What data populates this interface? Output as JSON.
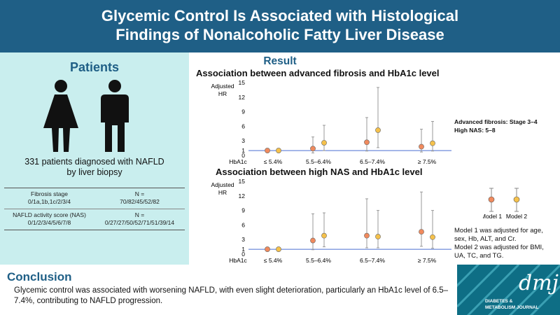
{
  "header": {
    "title_line1": "Glycemic Control Is Associated with Histological",
    "title_line2": "Findings of Nonalcoholic Fatty Liver Disease"
  },
  "patients": {
    "title": "Patients",
    "desc_line1": "331 patients diagnosed with NAFLD",
    "desc_line2": "by liver biopsy",
    "rows": [
      {
        "label_line1": "Fibrosis stage",
        "label_line2": "0/1a,1b,1c/2/3/4",
        "n_line1": "N =",
        "n_line2": "70/82/45/52/82"
      },
      {
        "label_line1": "NAFLD activity score (NAS)",
        "label_line2": "0/1/2/3/4/5/6/7/8",
        "n_line1": "N =",
        "n_line2": "0/27/27/50/52/71/51/39/14"
      }
    ]
  },
  "result": {
    "title": "Result",
    "chart1_title": "Association between advanced fibrosis and HbA1c level",
    "chart2_title": "Association between high NAS and HbA1c level",
    "notes": {
      "def_line1": "Advanced fibrosis: Stage 3–4",
      "def_line2": "High NAS: 5–8",
      "model_line1": "Model 1 was adjusted for age,",
      "model_line2": "sex, Hb, ALT, and Cr.",
      "model_line3": "Model 2 was adjusted for BMI,",
      "model_line4": "UA, TC, and TG."
    },
    "legend": {
      "model1": "Model 1",
      "model2": "Model 2",
      "model1_color": "#f08a5d",
      "model2_color": "#f5c14b"
    }
  },
  "chart_data": [
    {
      "type": "scatter",
      "title": "Association between advanced fibrosis and HbA1c level",
      "ylabel_line1": "Adjusted",
      "ylabel_line2": "HR",
      "xlabel": "HbA1c",
      "categories": [
        "≤ 5.4%",
        "5.5–6.4%",
        "6.5–7.4%",
        "≥ 7.5%"
      ],
      "yticks": [
        0,
        1,
        3,
        6,
        9,
        12,
        15
      ],
      "ylim": [
        0,
        15
      ],
      "reference_line": 1,
      "series": [
        {
          "name": "Model 1",
          "values": [
            1.0,
            1.4,
            2.7,
            1.8
          ],
          "lower": [
            1.0,
            0.5,
            0.9,
            0.7
          ],
          "upper": [
            1.0,
            3.8,
            7.8,
            5.4
          ]
        },
        {
          "name": "Model 2",
          "values": [
            1.0,
            2.6,
            5.2,
            2.5
          ],
          "lower": [
            1.0,
            1.0,
            1.6,
            0.9
          ],
          "upper": [
            1.0,
            6.2,
            14.0,
            7.0
          ]
        }
      ]
    },
    {
      "type": "scatter",
      "title": "Association between high NAS and HbA1c level",
      "ylabel_line1": "Adjusted",
      "ylabel_line2": "HR",
      "xlabel": "HbA1c",
      "categories": [
        "≤ 5.4%",
        "5.5–6.4%",
        "6.5–7.4%",
        "≥ 7.5%"
      ],
      "yticks": [
        0,
        1,
        3,
        6,
        9,
        12,
        15
      ],
      "ylim": [
        0,
        15
      ],
      "reference_line": 1,
      "series": [
        {
          "name": "Model 1",
          "values": [
            1.0,
            2.8,
            3.8,
            4.6
          ],
          "lower": [
            1.0,
            0.9,
            1.3,
            1.6
          ],
          "upper": [
            1.0,
            8.3,
            11.4,
            12.8
          ]
        },
        {
          "name": "Model 2",
          "values": [
            1.0,
            3.8,
            3.6,
            3.5
          ],
          "lower": [
            1.0,
            1.5,
            1.3,
            1.2
          ],
          "upper": [
            1.0,
            8.5,
            9.0,
            9.0
          ]
        }
      ]
    }
  ],
  "conclusion": {
    "title": "Conclusion",
    "text": "Glycemic control was associated with worsening NAFLD, with even slight deterioration, particularly an HbA1c level of 6.5–7.4%, contributing to NAFLD progression."
  },
  "logo": {
    "mark": "dmj",
    "line1": "DIABETES &",
    "line2": "METABOLISM JOURNAL"
  }
}
